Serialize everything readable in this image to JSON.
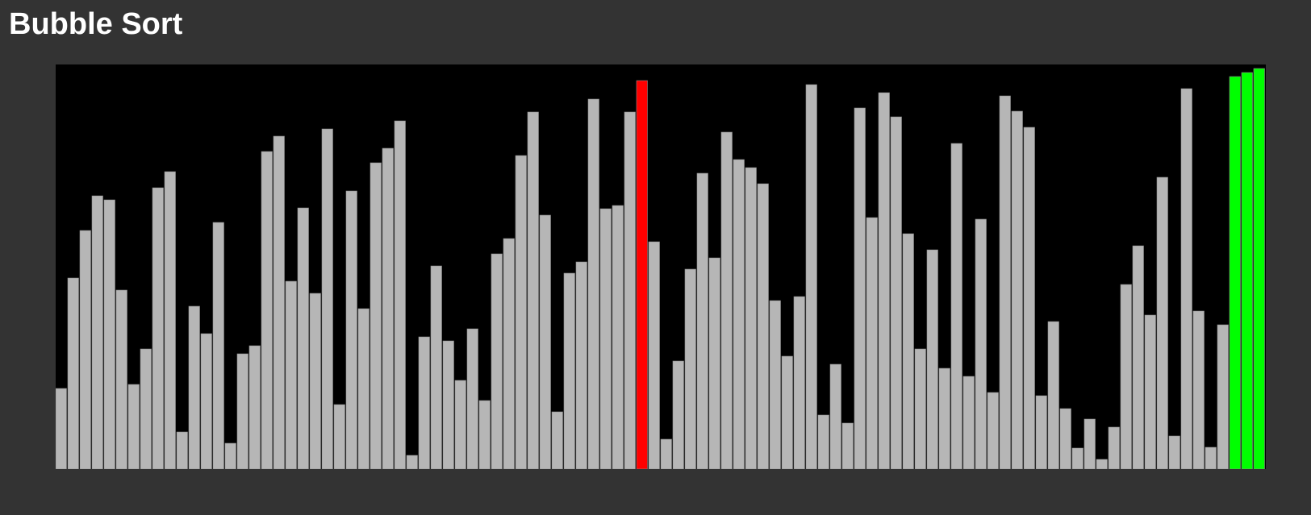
{
  "title": "Bubble Sort",
  "colors": {
    "background": "#333333",
    "canvas": "#000000",
    "bar_default": "#b6b6b6",
    "bar_border": "#8c8c8c",
    "bar_active": "#ff0000",
    "bar_sorted": "#00ff00"
  },
  "chart_data": {
    "type": "bar",
    "ylim": [
      0,
      502
    ],
    "values": [
      100,
      237,
      296,
      339,
      334,
      222,
      105,
      149,
      349,
      369,
      46,
      202,
      168,
      306,
      32,
      143,
      153,
      394,
      413,
      233,
      324,
      218,
      422,
      80,
      345,
      199,
      380,
      398,
      432,
      17,
      164,
      252,
      159,
      110,
      174,
      85,
      267,
      286,
      389,
      443,
      315,
      71,
      243,
      257,
      459,
      323,
      327,
      443,
      482,
      282,
      37,
      134,
      248,
      367,
      262,
      418,
      384,
      374,
      354,
      209,
      140,
      214,
      477,
      67,
      130,
      57,
      448,
      312,
      467,
      437,
      292,
      149,
      272,
      125,
      404,
      115,
      310,
      95,
      463,
      444,
      424,
      91,
      183,
      75,
      26,
      62,
      12,
      52,
      229,
      277,
      191,
      362,
      41,
      472,
      196,
      27,
      179,
      487,
      492,
      497
    ],
    "states": {
      "active_indices": [
        48
      ],
      "sorted_indices": [
        97,
        98,
        99
      ]
    }
  }
}
